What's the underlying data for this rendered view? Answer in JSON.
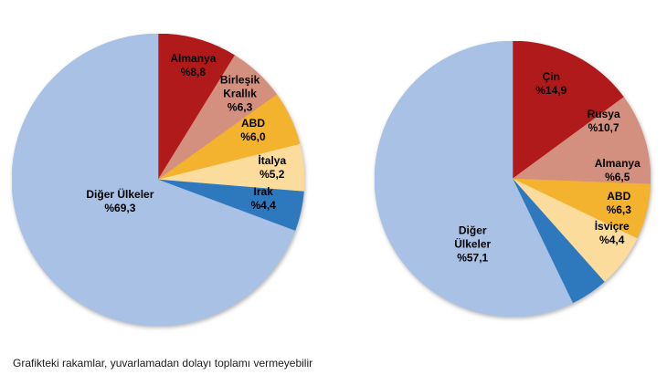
{
  "footnote": "Grafikteki rakamlar, yuvarlamadan dolayı toplamı vermeyebilir",
  "palette": {
    "dark_red": "#B11A1A",
    "salmon": "#D4907E",
    "gold": "#F3B32F",
    "cream": "#FBDC9D",
    "blue": "#2E79BE",
    "light_blue": "#A8C1E5"
  },
  "chart_data": [
    {
      "type": "pie",
      "title": "",
      "direction": "clockwise",
      "start_angle_deg": 0,
      "legend_position": "none",
      "slices": [
        {
          "label": "Almanya",
          "value": 8.8,
          "display": "%8,8",
          "color": "#B11A1A",
          "label_pos": {
            "x": 0.24,
            "y": -0.78,
            "w": 90
          }
        },
        {
          "label": "Birleşik Krallık",
          "value": 6.3,
          "display": "%6,3",
          "color": "#D4907E",
          "label_pos": {
            "x": 0.56,
            "y": -0.59,
            "w": 66
          }
        },
        {
          "label": "ABD",
          "value": 6.0,
          "display": "%6,0",
          "color": "#F3B32F",
          "label_pos": {
            "x": 0.65,
            "y": -0.34,
            "w": 90
          }
        },
        {
          "label": "İtalya",
          "value": 5.2,
          "display": "%5,2",
          "color": "#FBDC9D",
          "label_pos": {
            "x": 0.78,
            "y": -0.08,
            "w": 90
          }
        },
        {
          "label": "Irak",
          "value": 4.4,
          "display": "%4,4",
          "color": "#2E79BE",
          "label_pos": {
            "x": 0.72,
            "y": 0.13,
            "w": 90
          }
        },
        {
          "label": "Diğer Ülkeler",
          "value": 69.3,
          "display": "%69,3",
          "color": "#A8C1E5",
          "label_pos": {
            "x": -0.26,
            "y": 0.15,
            "w": 120
          }
        }
      ]
    },
    {
      "type": "pie",
      "title": "",
      "direction": "clockwise",
      "start_angle_deg": 0,
      "legend_position": "none",
      "slices": [
        {
          "label": "Çin",
          "value": 14.9,
          "display": "%14,9",
          "color": "#B11A1A",
          "label_pos": {
            "x": 0.28,
            "y": -0.69,
            "w": 90
          }
        },
        {
          "label": "Rusya",
          "value": 10.7,
          "display": "%10,7",
          "color": "#D4907E",
          "label_pos": {
            "x": 0.66,
            "y": -0.42,
            "w": 90
          }
        },
        {
          "label": "Almanya",
          "value": 6.5,
          "display": "%6,5",
          "color": "#F3B32F",
          "label_pos": {
            "x": 0.76,
            "y": -0.06,
            "w": 90
          }
        },
        {
          "label": "ABD",
          "value": 6.3,
          "display": "%6,3",
          "color": "#FBDC9D",
          "label_pos": {
            "x": 0.77,
            "y": 0.18,
            "w": 90
          }
        },
        {
          "label": "İsviçre",
          "value": 4.4,
          "display": "%4,4",
          "color": "#2E79BE",
          "label_pos": {
            "x": 0.72,
            "y": 0.4,
            "w": 90
          }
        },
        {
          "label": "Diğer Ülkeler",
          "value": 57.1,
          "display": "%57,1",
          "color": "#A8C1E5",
          "label_pos": {
            "x": -0.29,
            "y": 0.48,
            "w": 58
          }
        }
      ]
    }
  ]
}
